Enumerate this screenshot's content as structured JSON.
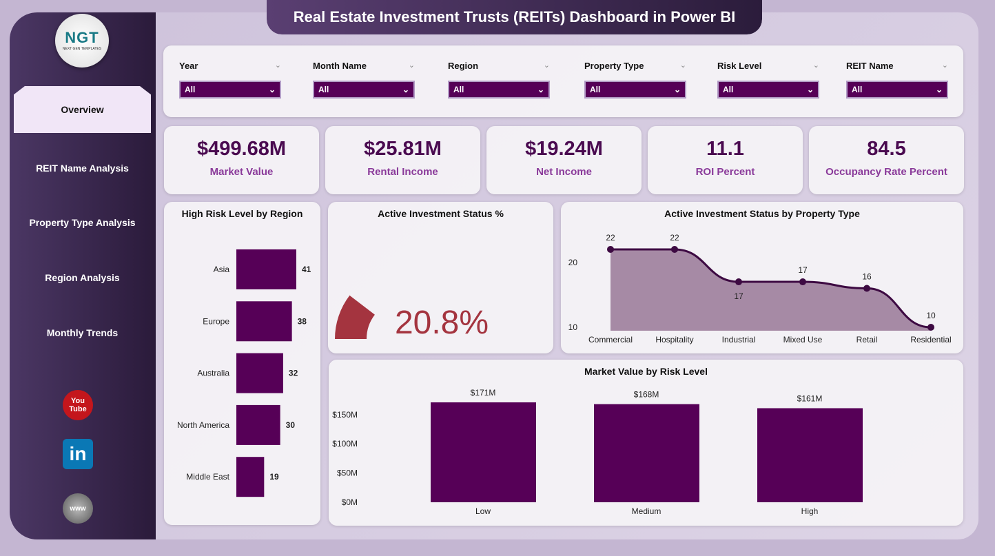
{
  "title": "Real Estate Investment Trusts (REITs) Dashboard in Power BI",
  "logo": {
    "text": "NGT",
    "subtext": "NEXT GEN TEMPLATES"
  },
  "nav": [
    {
      "label": "Overview",
      "active": true
    },
    {
      "label": "REIT Name Analysis"
    },
    {
      "label": "Property Type Analysis"
    },
    {
      "label": "Region Analysis"
    },
    {
      "label": "Monthly Trends"
    }
  ],
  "social": [
    {
      "icon": "youtube-icon",
      "label": "You Tube"
    },
    {
      "icon": "linkedin-icon",
      "label": "in"
    },
    {
      "icon": "website-icon",
      "label": "www"
    }
  ],
  "filters": [
    {
      "label": "Year",
      "value": "All"
    },
    {
      "label": "Month Name",
      "value": "All"
    },
    {
      "label": "Region",
      "value": "All"
    },
    {
      "label": "Property Type",
      "value": "All"
    },
    {
      "label": "Risk Level",
      "value": "All"
    },
    {
      "label": "REIT Name",
      "value": "All"
    }
  ],
  "kpis": [
    {
      "value": "$499.68M",
      "label": "Market Value"
    },
    {
      "value": "$25.81M",
      "label": "Rental Income"
    },
    {
      "value": "$19.24M",
      "label": "Net Income"
    },
    {
      "value": "11.1",
      "label": "ROI Percent"
    },
    {
      "value": "84.5",
      "label": "Occupancy Rate Percent"
    }
  ],
  "colors": {
    "bar": "#560057",
    "gauge": "#a4343f",
    "area": "#a68aa5",
    "line": "#3d0a42"
  },
  "chart_data": [
    {
      "type": "bar",
      "orientation": "horizontal",
      "title": "High Risk Level by Region",
      "categories": [
        "Asia",
        "Europe",
        "Australia",
        "North America",
        "Middle East"
      ],
      "values": [
        41,
        38,
        32,
        30,
        19
      ]
    },
    {
      "type": "gauge",
      "title": "Active Investment Status %",
      "value": 20.8,
      "display": "20.8%",
      "max": 100
    },
    {
      "type": "area",
      "title": "Active Investment Status by Property Type",
      "categories": [
        "Commercial",
        "Hospitality",
        "Industrial",
        "Mixed Use",
        "Retail",
        "Residential"
      ],
      "values": [
        22,
        22,
        17,
        17,
        16,
        10
      ],
      "yticks": [
        "10",
        "20"
      ],
      "ylim": [
        10,
        23
      ]
    },
    {
      "type": "bar",
      "title": "Market Value by Risk Level",
      "categories": [
        "Low",
        "Medium",
        "High"
      ],
      "values": [
        171,
        168,
        161
      ],
      "labels": [
        "$171M",
        "$168M",
        "$161M"
      ],
      "yticks": [
        "$0M",
        "$50M",
        "$100M",
        "$150M"
      ],
      "ylim": [
        0,
        171
      ]
    }
  ]
}
